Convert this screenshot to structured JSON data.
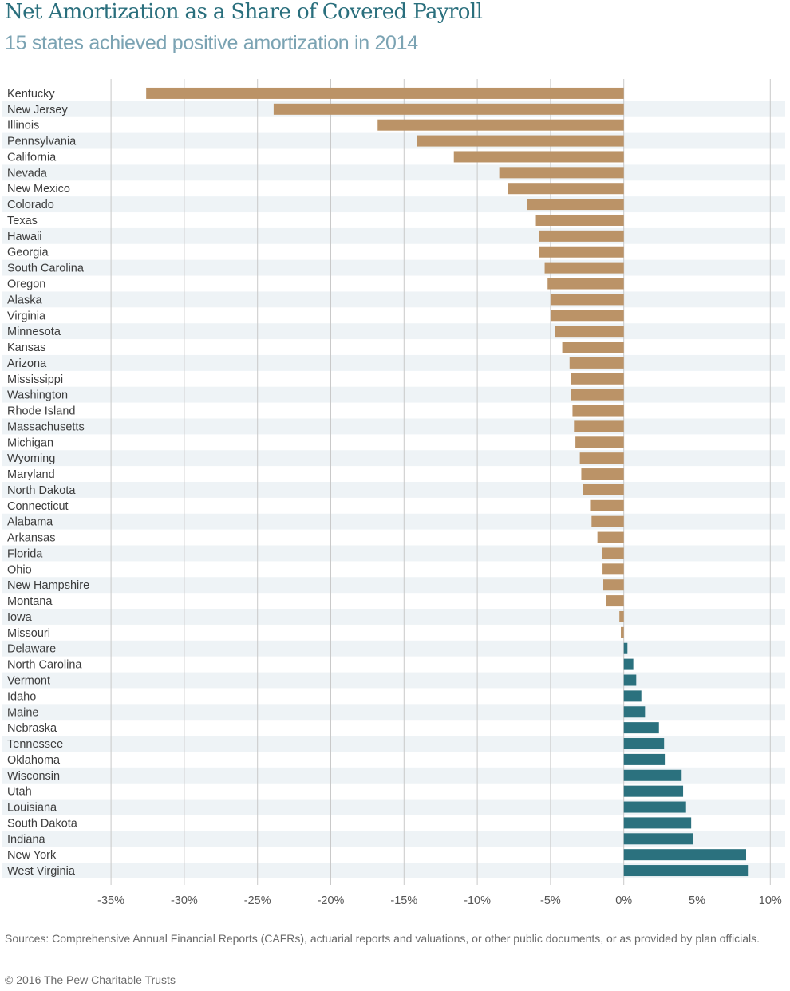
{
  "header": {
    "title": "Net Amortization as a Share of Covered Payroll",
    "subtitle": "15 states achieved positive amortization in 2014"
  },
  "footer": {
    "sources": "Sources: Comprehensive Annual Financial Reports (CAFRs), actuarial reports and valuations, or other public documents, or as provided by plan officials.",
    "copyright": "© 2016 The Pew Charitable Trusts"
  },
  "colors": {
    "negative": "#bb9367",
    "positive": "#2b717e",
    "band": "#eef3f6",
    "grid": "#c9c9c9",
    "title": "#2a6f7d",
    "subtitle": "#7ba3b3"
  },
  "chart_data": {
    "type": "bar",
    "orientation": "horizontal",
    "title": "Net Amortization as a Share of Covered Payroll",
    "subtitle": "15 states achieved positive amortization in 2014",
    "xlabel": "",
    "ylabel": "",
    "xlim": [
      -35,
      10
    ],
    "xticks": [
      -35,
      -30,
      -25,
      -20,
      -15,
      -10,
      -5,
      0,
      5,
      10
    ],
    "xtick_labels": [
      "-35%",
      "-30%",
      "-25%",
      "-20%",
      "-15%",
      "-10%",
      "-5%",
      "0%",
      "5%",
      "10%"
    ],
    "grid": true,
    "legend": "none",
    "unit": "%",
    "categories": [
      "Kentucky",
      "New Jersey",
      "Illinois",
      "Pennsylvania",
      "California",
      "Nevada",
      "New Mexico",
      "Colorado",
      "Texas",
      "Hawaii",
      "Georgia",
      "South Carolina",
      "Oregon",
      "Alaska",
      "Virginia",
      "Minnesota",
      "Kansas",
      "Arizona",
      "Mississippi",
      "Washington",
      "Rhode Island",
      "Massachusetts",
      "Michigan",
      "Wyoming",
      "Maryland",
      "North Dakota",
      "Connecticut",
      "Alabama",
      "Arkansas",
      "Florida",
      "Ohio",
      "New Hampshire",
      "Montana",
      "Iowa",
      "Missouri",
      "Delaware",
      "North Carolina",
      "Vermont",
      "Idaho",
      "Maine",
      "Nebraska",
      "Tennessee",
      "Oklahoma",
      "Wisconsin",
      "Utah",
      "Louisiana",
      "South Dakota",
      "Indiana",
      "New York",
      "West Virginia"
    ],
    "values": [
      -32.6,
      -23.9,
      -16.8,
      -14.1,
      -11.6,
      -8.5,
      -7.9,
      -6.6,
      -6.0,
      -5.8,
      -5.8,
      -5.4,
      -5.2,
      -5.0,
      -5.0,
      -4.7,
      -4.2,
      -3.7,
      -3.6,
      -3.6,
      -3.5,
      -3.4,
      -3.3,
      -3.0,
      -2.9,
      -2.8,
      -2.3,
      -2.2,
      -1.8,
      -1.5,
      -1.45,
      -1.4,
      -1.2,
      -0.3,
      -0.2,
      0.25,
      0.65,
      0.85,
      1.2,
      1.45,
      2.4,
      2.75,
      2.8,
      3.95,
      4.05,
      4.25,
      4.6,
      4.7,
      8.35,
      8.47
    ]
  }
}
